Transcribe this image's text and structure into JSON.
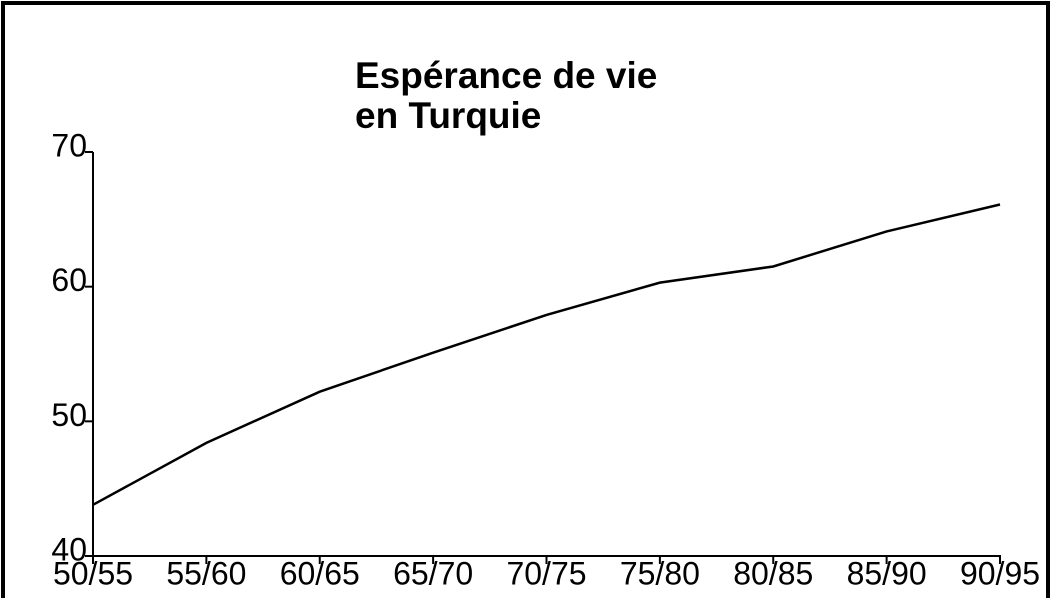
{
  "chart_data": {
    "type": "line",
    "title": [
      "Espérance de vie",
      "en Turquie"
    ],
    "categories": [
      "50/55",
      "55/60",
      "60/65",
      "65/70",
      "70/75",
      "75/80",
      "80/85",
      "85/90",
      "90/95"
    ],
    "values": [
      43.8,
      48.4,
      52.2,
      55.1,
      57.9,
      60.3,
      61.5,
      64.1,
      66.1
    ],
    "color": "#000000",
    "ylim": [
      40,
      70
    ],
    "yticks": [
      40,
      50,
      60,
      70
    ],
    "grid": false
  }
}
